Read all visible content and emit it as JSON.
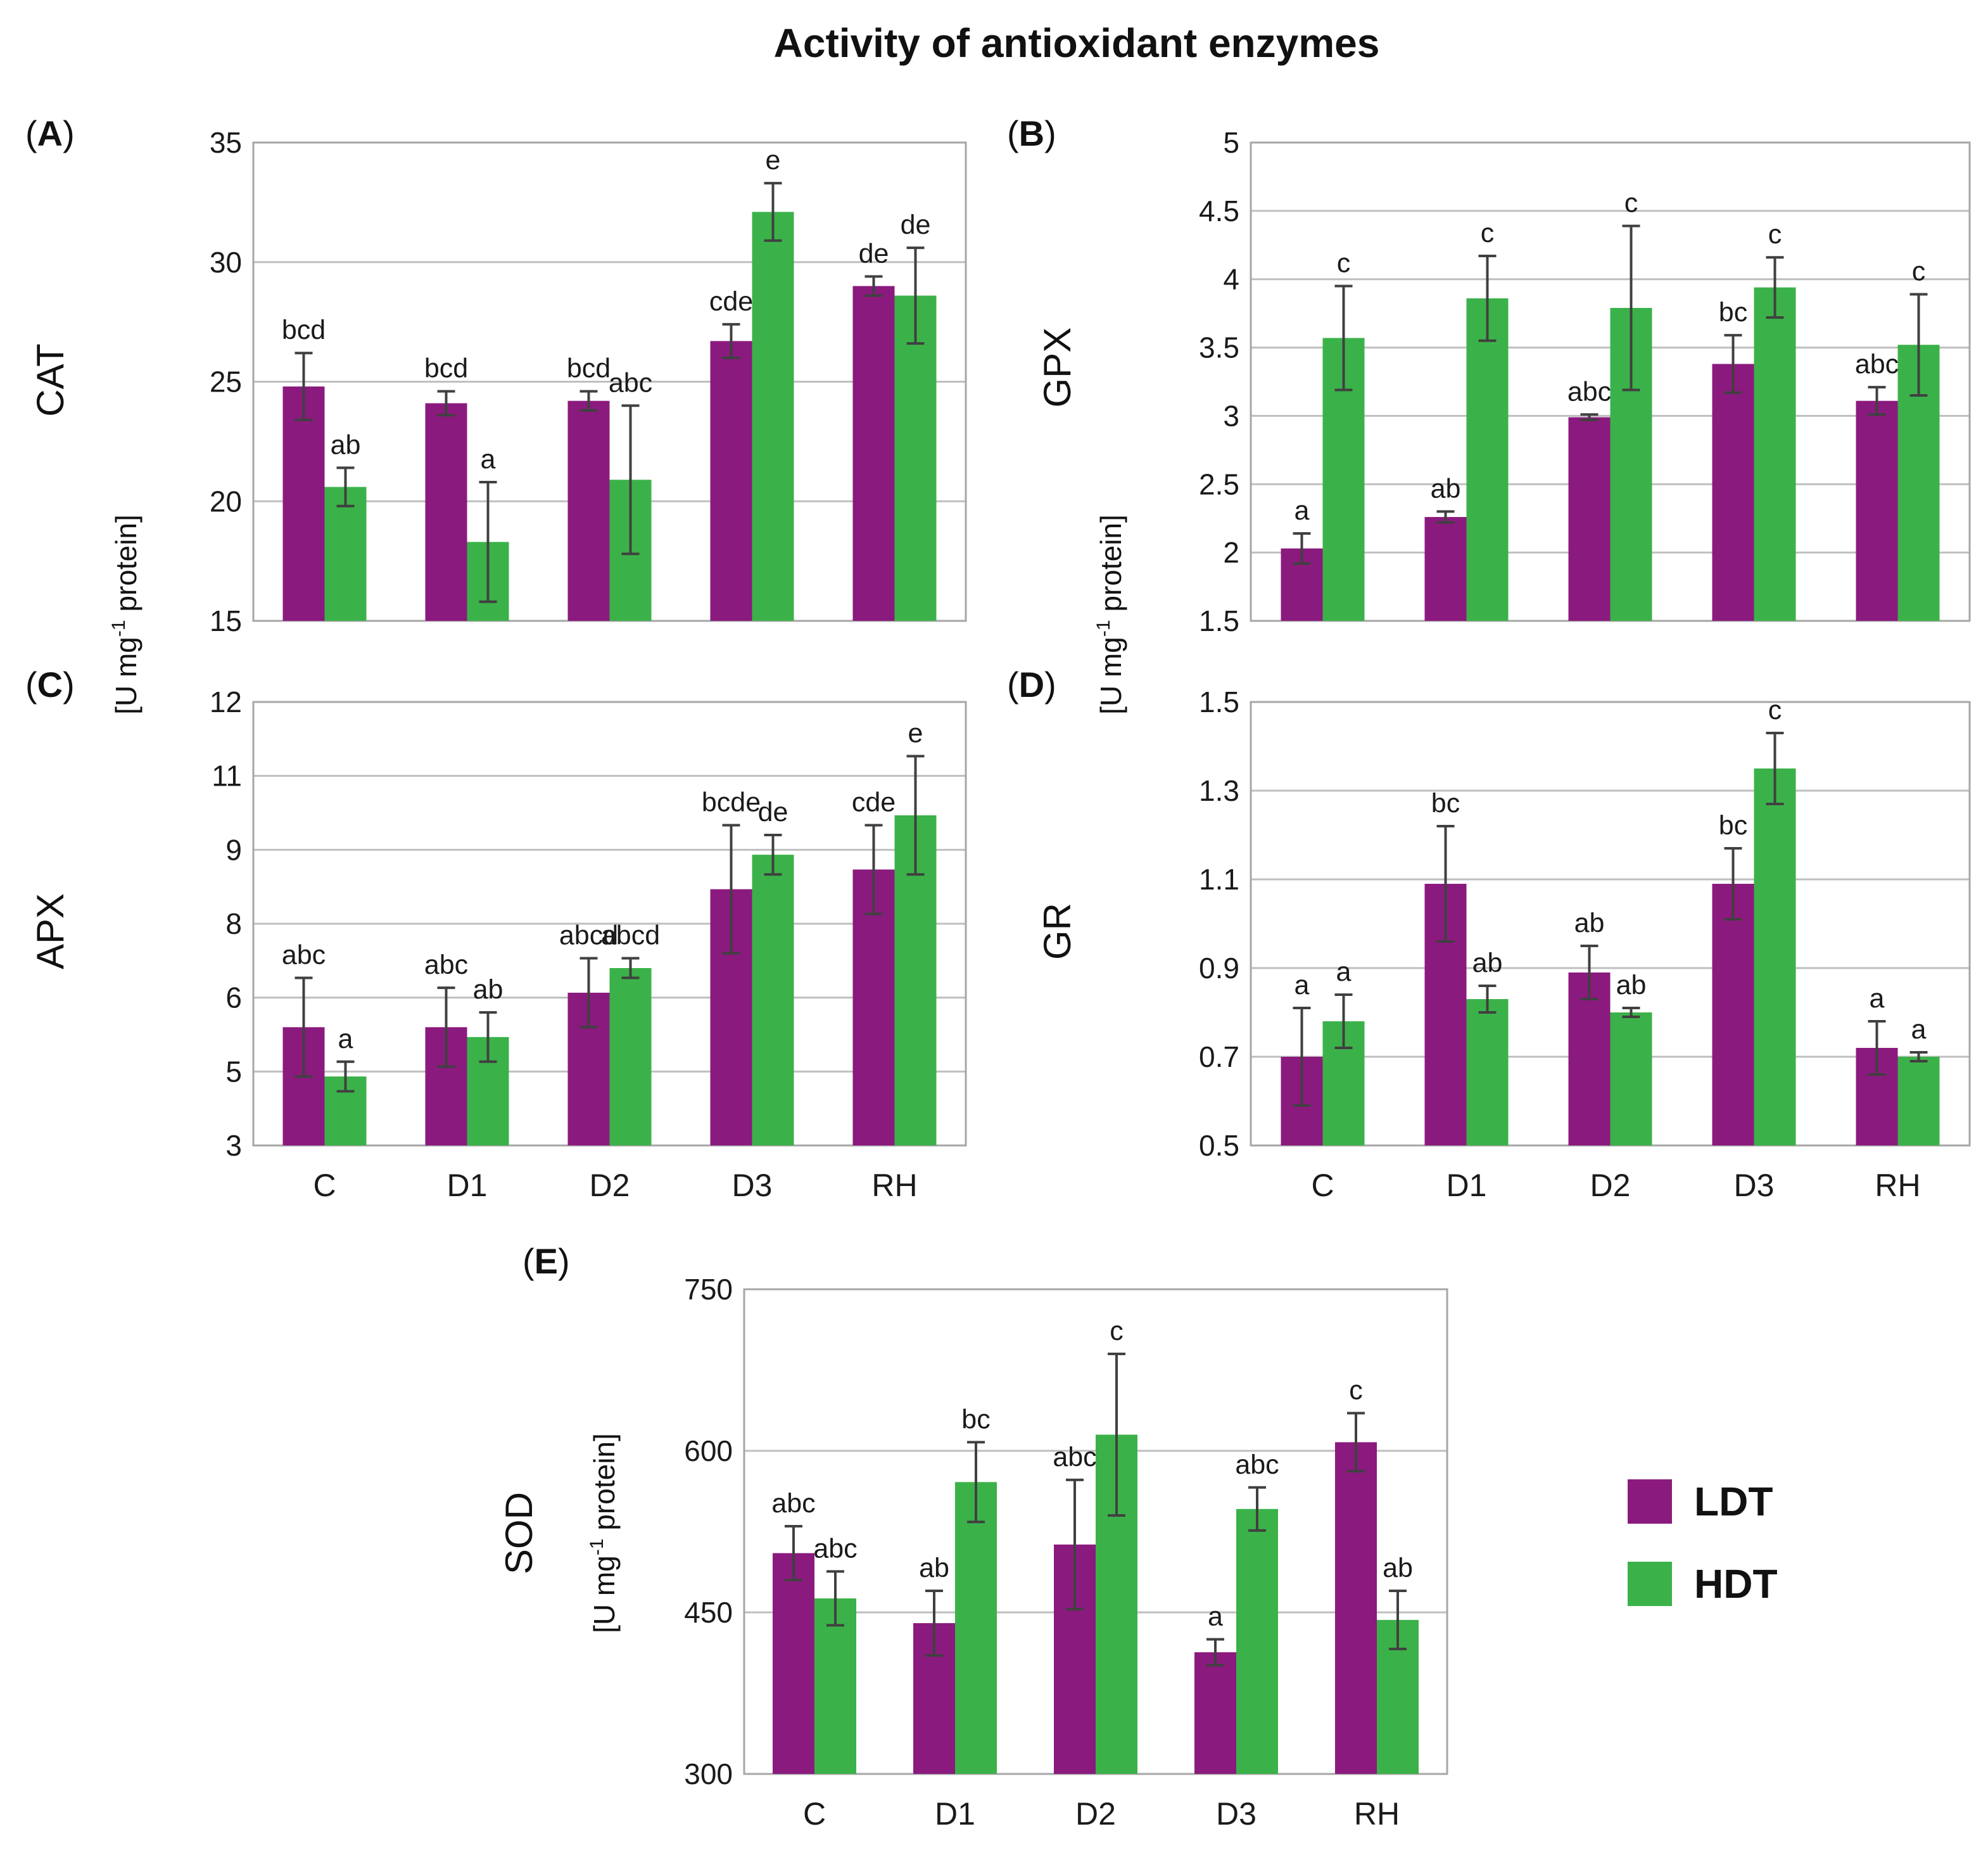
{
  "title": "Activity of antioxidant enzymes",
  "colors": {
    "LDT": "#8b1a7e",
    "HDT": "#3bb249"
  },
  "legend": [
    {
      "name": "LDT",
      "color": "#8b1a7e"
    },
    {
      "name": "HDT",
      "color": "#3bb249"
    }
  ],
  "y_unit_pre": "[U mg",
  "y_unit_sup": "-1",
  "y_unit_post": " protein]",
  "chart_data": [
    {
      "panel": "A",
      "type": "bar",
      "enzyme": "CAT",
      "categories": [
        "C",
        "D1",
        "D2",
        "D3",
        "RH"
      ],
      "ylim": [
        15,
        35
      ],
      "yticks": [
        15,
        20,
        25,
        30,
        35
      ],
      "ytick_labels": [
        "15",
        "20",
        "25",
        "30",
        "35"
      ],
      "show_xticks": false,
      "series": [
        {
          "name": "LDT",
          "values": [
            24.8,
            24.1,
            24.2,
            26.7,
            29.0
          ],
          "errors": [
            1.4,
            0.5,
            0.4,
            0.7,
            0.4
          ],
          "letters": [
            "bcd",
            "bcd",
            "bcd",
            "cde",
            "de"
          ]
        },
        {
          "name": "HDT",
          "values": [
            20.6,
            18.3,
            20.9,
            32.1,
            28.6
          ],
          "errors": [
            0.8,
            2.5,
            3.1,
            1.2,
            2.0
          ],
          "letters": [
            "ab",
            "a",
            "abc",
            "e",
            "de"
          ]
        }
      ]
    },
    {
      "panel": "B",
      "type": "bar",
      "enzyme": "GPX",
      "categories": [
        "C",
        "D1",
        "D2",
        "D3",
        "RH"
      ],
      "ylim": [
        1.5,
        5
      ],
      "yticks": [
        1.5,
        2,
        2.5,
        3,
        3.5,
        4,
        4.5,
        5
      ],
      "ytick_labels": [
        "1.5",
        "2",
        "2.5",
        "3",
        "3.5",
        "4",
        "4.5",
        "5"
      ],
      "show_xticks": false,
      "series": [
        {
          "name": "LDT",
          "values": [
            2.03,
            2.26,
            2.99,
            3.38,
            3.11
          ],
          "errors": [
            0.11,
            0.04,
            0.02,
            0.21,
            0.1
          ],
          "letters": [
            "a",
            "ab",
            "abc",
            "bc",
            "abc"
          ]
        },
        {
          "name": "HDT",
          "values": [
            3.57,
            3.86,
            3.79,
            3.94,
            3.52
          ],
          "errors": [
            0.38,
            0.31,
            0.6,
            0.22,
            0.37
          ],
          "letters": [
            "c",
            "c",
            "c",
            "c",
            "c"
          ]
        }
      ]
    },
    {
      "panel": "C",
      "type": "bar",
      "enzyme": "APX",
      "categories": [
        "C",
        "D1",
        "D2",
        "D3",
        "RH"
      ],
      "ylim": [
        3,
        12
      ],
      "yticks": [
        3,
        4.5,
        6,
        7.5,
        9,
        10.5,
        12
      ],
      "ytick_labels": [
        "3",
        "5",
        "6",
        "8",
        "9",
        "11",
        "12"
      ],
      "show_xticks": true,
      "series": [
        {
          "name": "LDT",
          "values": [
            5.4,
            5.4,
            6.1,
            8.2,
            8.6
          ],
          "errors": [
            1.0,
            0.8,
            0.7,
            1.3,
            0.9
          ],
          "letters": [
            "abc",
            "abc",
            "abcd",
            "bcde",
            "cde"
          ]
        },
        {
          "name": "HDT",
          "values": [
            4.4,
            5.2,
            6.6,
            8.9,
            9.7
          ],
          "errors": [
            0.3,
            0.5,
            0.2,
            0.4,
            1.2
          ],
          "letters": [
            "a",
            "ab",
            "abcd",
            "de",
            "e"
          ]
        }
      ]
    },
    {
      "panel": "D",
      "type": "bar",
      "enzyme": "GR",
      "categories": [
        "C",
        "D1",
        "D2",
        "D3",
        "RH"
      ],
      "ylim": [
        0.5,
        1.5
      ],
      "yticks": [
        0.5,
        0.7,
        0.9,
        1.1,
        1.3,
        1.5
      ],
      "ytick_labels": [
        "0.5",
        "0.7",
        "0.9",
        "1.1",
        "1.3",
        "1.5"
      ],
      "show_xticks": true,
      "series": [
        {
          "name": "LDT",
          "values": [
            0.7,
            1.09,
            0.89,
            1.09,
            0.72
          ],
          "errors": [
            0.11,
            0.13,
            0.06,
            0.08,
            0.06
          ],
          "letters": [
            "a",
            "bc",
            "ab",
            "bc",
            "a"
          ]
        },
        {
          "name": "HDT",
          "values": [
            0.78,
            0.83,
            0.8,
            1.35,
            0.7
          ],
          "errors": [
            0.06,
            0.03,
            0.01,
            0.08,
            0.01
          ],
          "letters": [
            "a",
            "ab",
            "ab",
            "c",
            "a"
          ]
        }
      ]
    },
    {
      "panel": "E",
      "type": "bar",
      "enzyme": "SOD",
      "categories": [
        "C",
        "D1",
        "D2",
        "D3",
        "RH"
      ],
      "ylim": [
        300,
        750
      ],
      "yticks": [
        300,
        450,
        600,
        750
      ],
      "ytick_labels": [
        "300",
        "450",
        "600",
        "750"
      ],
      "show_xticks": true,
      "series": [
        {
          "name": "LDT",
          "values": [
            505,
            440,
            513,
            413,
            608
          ],
          "errors": [
            25,
            30,
            60,
            12,
            27
          ],
          "letters": [
            "abc",
            "ab",
            "abc",
            "a",
            "c"
          ]
        },
        {
          "name": "HDT",
          "values": [
            463,
            571,
            615,
            546,
            443
          ],
          "errors": [
            25,
            37,
            75,
            20,
            27
          ],
          "letters": [
            "abc",
            "bc",
            "c",
            "abc",
            "ab"
          ]
        }
      ]
    }
  ]
}
